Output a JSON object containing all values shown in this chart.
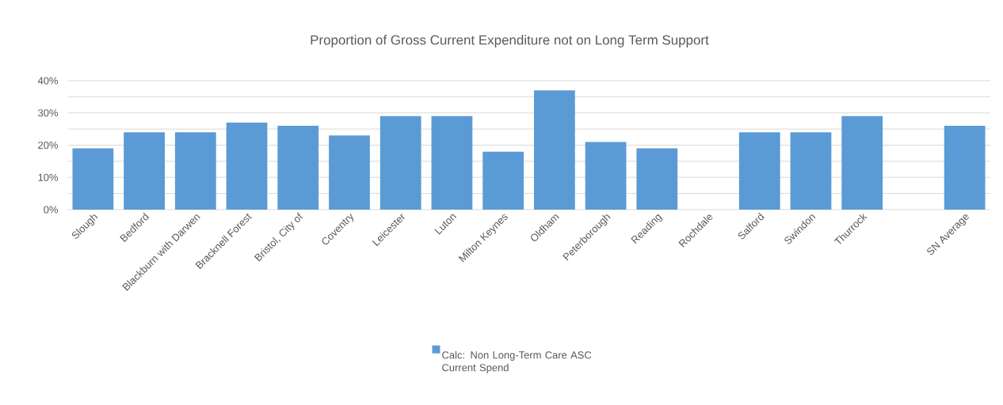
{
  "chart_data": {
    "type": "bar",
    "title": "Proportion of Gross Current Expenditure not on Long Term Support",
    "categories": [
      "Slough",
      "Bedford",
      "Blackburn with Darwen",
      "Bracknell Forest",
      "Bristol, City of",
      "Coventry",
      "Leicester",
      "Luton",
      "Milton Keynes",
      "Oldham",
      "Peterborough",
      "Reading",
      "Rochdale",
      "Salford",
      "Swindon",
      "Thurrock",
      null,
      "SN Average"
    ],
    "series": [
      {
        "name": "Calc: Non Long-Term Care ASC Current Spend",
        "color": "#5b9bd5",
        "values": [
          19,
          24,
          24,
          27,
          26,
          23,
          29,
          29,
          18,
          37,
          21,
          19,
          null,
          24,
          24,
          29,
          null,
          26
        ]
      }
    ],
    "ylim": [
      0,
      40
    ],
    "yticks": [
      {
        "value": 0,
        "label": "0%"
      },
      {
        "value": 5,
        "label": null
      },
      {
        "value": 10,
        "label": "10%"
      },
      {
        "value": 15,
        "label": null
      },
      {
        "value": 20,
        "label": "20%"
      },
      {
        "value": 25,
        "label": null
      },
      {
        "value": 30,
        "label": "30%"
      },
      {
        "value": 35,
        "label": null
      },
      {
        "value": 40,
        "label": "40%"
      }
    ],
    "grid": "y",
    "legend": "bottom"
  }
}
